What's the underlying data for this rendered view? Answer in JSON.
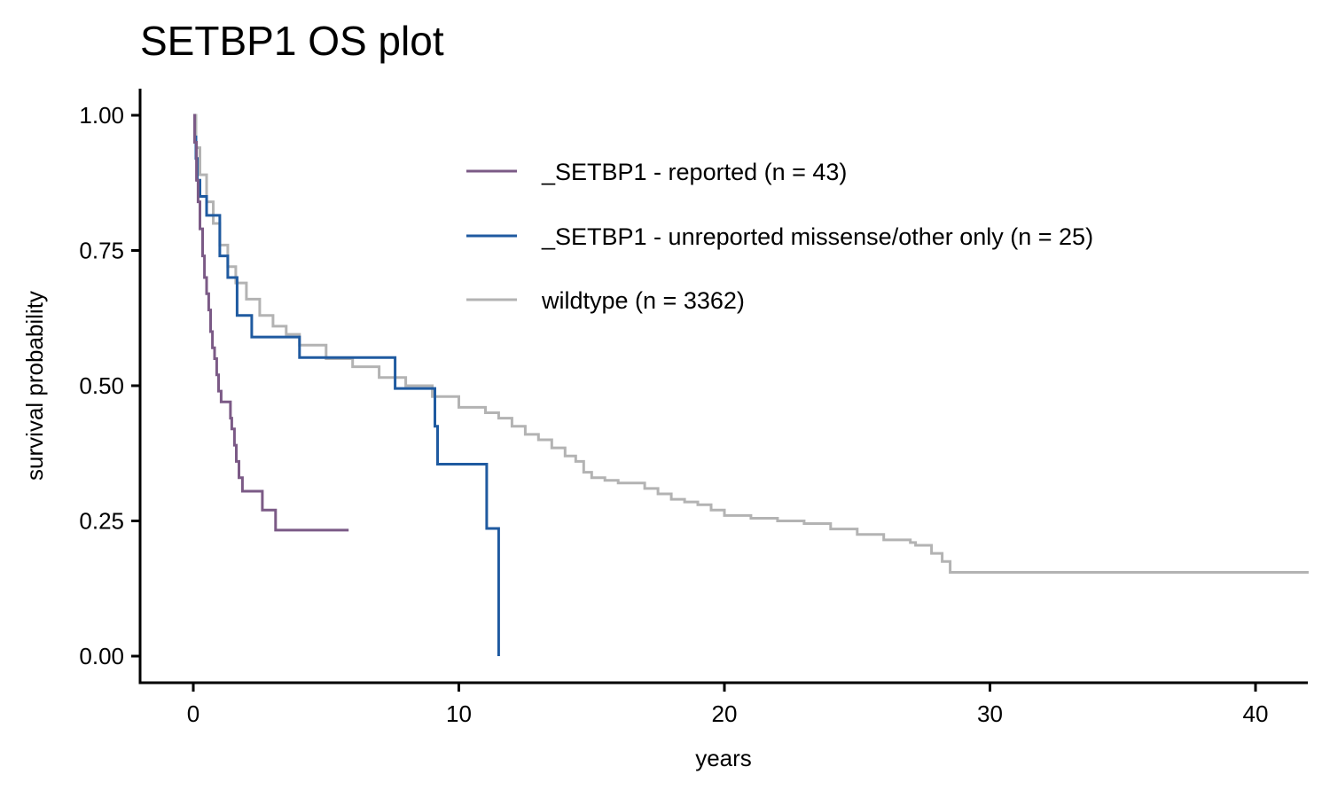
{
  "chart_data": {
    "type": "line",
    "title": "SETBP1 OS plot",
    "xlabel": "years",
    "ylabel": "survival probability",
    "xlim": [
      -2,
      42
    ],
    "ylim": [
      -0.05,
      1.05
    ],
    "xticks": [
      0,
      10,
      20,
      30,
      40
    ],
    "xtick_labels": [
      "0",
      "10",
      "20",
      "30",
      "40"
    ],
    "yticks": [
      0,
      0.25,
      0.5,
      0.75,
      1.0
    ],
    "ytick_labels": [
      "0.00",
      "0.25",
      "0.50",
      "0.75",
      "1.00"
    ],
    "grid": false,
    "legend_position": "top-right (inside plot)",
    "step": true,
    "series": [
      {
        "name": "_SETBP1 - reported (n = 43)",
        "color": "#7B5A86",
        "x": [
          0,
          0.05,
          0.12,
          0.18,
          0.25,
          0.35,
          0.42,
          0.5,
          0.58,
          0.65,
          0.72,
          0.8,
          0.88,
          0.95,
          1.05,
          1.2,
          1.4,
          1.45,
          1.55,
          1.62,
          1.72,
          1.85,
          2.0,
          2.15,
          2.6,
          2.9,
          3.1,
          5.85
        ],
        "y": [
          1.0,
          0.95,
          0.88,
          0.84,
          0.79,
          0.74,
          0.7,
          0.67,
          0.64,
          0.6,
          0.57,
          0.55,
          0.52,
          0.49,
          0.47,
          0.47,
          0.44,
          0.42,
          0.39,
          0.36,
          0.33,
          0.305,
          0.305,
          0.305,
          0.27,
          0.27,
          0.233,
          0.233
        ]
      },
      {
        "name": "_SETBP1 - unreported missense/other only (n = 25)",
        "color": "#1F5AA0",
        "x": [
          0,
          0.05,
          0.1,
          0.15,
          0.25,
          0.5,
          1.0,
          1.1,
          1.3,
          1.55,
          1.65,
          2.2,
          4.0,
          7.6,
          9.1,
          9.2,
          11.05,
          11.5,
          11.5
        ],
        "y": [
          1.0,
          0.96,
          0.92,
          0.88,
          0.85,
          0.815,
          0.74,
          0.74,
          0.7,
          0.7,
          0.63,
          0.59,
          0.552,
          0.495,
          0.425,
          0.355,
          0.236,
          0.236,
          0.0
        ]
      },
      {
        "name": "wildtype (n = 3362)",
        "color": "#B3B3B3",
        "x": [
          0,
          0.1,
          0.25,
          0.5,
          0.75,
          1.0,
          1.3,
          1.6,
          2.0,
          2.5,
          3.0,
          3.5,
          4.0,
          5.0,
          6.0,
          7.0,
          8.0,
          9.0,
          10.0,
          11.0,
          11.5,
          12.0,
          12.5,
          13.0,
          13.5,
          14.0,
          14.4,
          14.7,
          15.0,
          15.5,
          16.0,
          17.0,
          17.5,
          18.0,
          18.5,
          19.0,
          19.5,
          20.0,
          21.0,
          22.0,
          23.0,
          24.0,
          25.0,
          26.0,
          27.0,
          27.2,
          27.8,
          28.2,
          28.5,
          30.0,
          35.0,
          40.0,
          42.0
        ],
        "y": [
          1.0,
          0.94,
          0.89,
          0.84,
          0.8,
          0.76,
          0.72,
          0.69,
          0.66,
          0.63,
          0.61,
          0.595,
          0.575,
          0.55,
          0.535,
          0.515,
          0.5,
          0.48,
          0.46,
          0.45,
          0.44,
          0.425,
          0.41,
          0.4,
          0.385,
          0.37,
          0.36,
          0.34,
          0.33,
          0.325,
          0.32,
          0.31,
          0.3,
          0.29,
          0.285,
          0.28,
          0.27,
          0.26,
          0.255,
          0.25,
          0.245,
          0.235,
          0.225,
          0.215,
          0.21,
          0.205,
          0.19,
          0.175,
          0.155,
          0.155,
          0.155,
          0.155,
          0.155
        ]
      }
    ]
  }
}
